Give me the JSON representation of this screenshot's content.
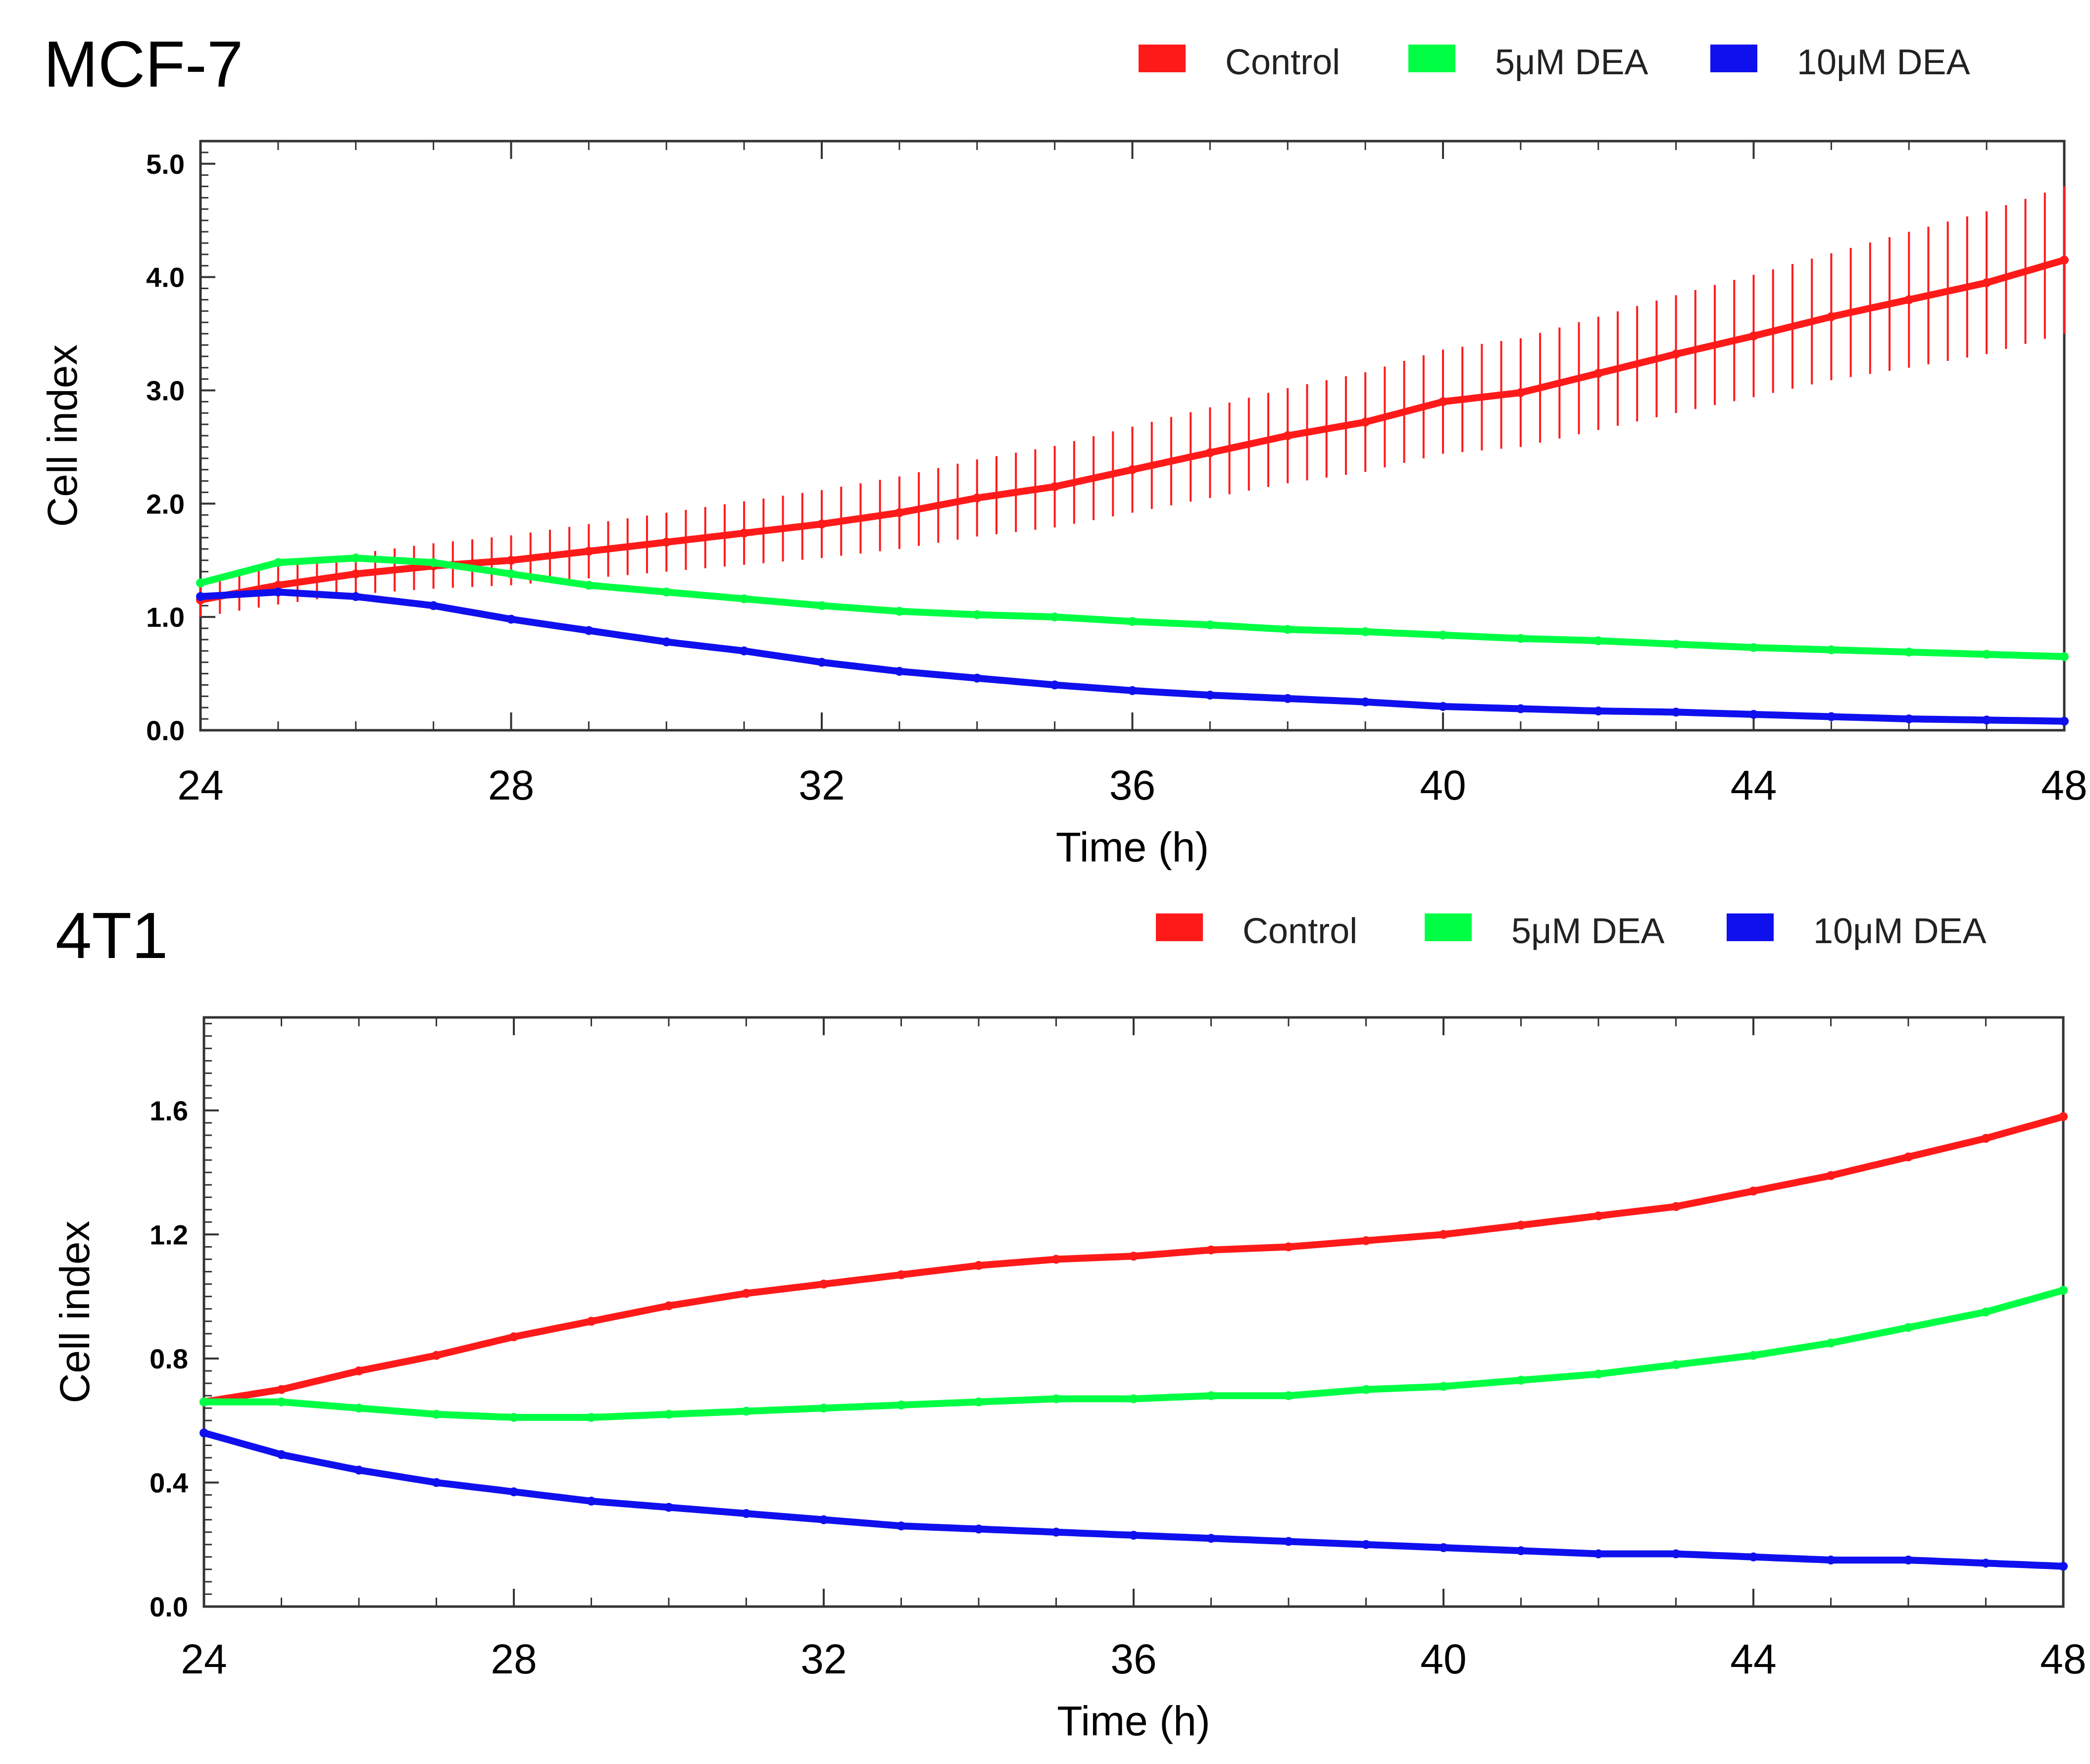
{
  "chart_data": [
    {
      "type": "line",
      "title": "MCF-7",
      "xlabel": "Time (h)",
      "ylabel": "Cell index",
      "xlim": [
        24,
        48
      ],
      "ylim": [
        0,
        5.2
      ],
      "xticks": [
        "24",
        "28",
        "32",
        "36",
        "40",
        "44",
        "48"
      ],
      "yticks": [
        "0.0",
        "1.0",
        "2.0",
        "3.0",
        "4.0",
        "5.0"
      ],
      "legend_position": "top-right",
      "grid": false,
      "x": [
        24,
        25,
        26,
        27,
        28,
        29,
        30,
        31,
        32,
        33,
        34,
        35,
        36,
        37,
        38,
        39,
        40,
        41,
        42,
        43,
        44,
        45,
        46,
        47,
        48
      ],
      "series": [
        {
          "name": "Control",
          "color": "#ff1a1a",
          "values": [
            1.15,
            1.28,
            1.38,
            1.45,
            1.5,
            1.58,
            1.66,
            1.74,
            1.82,
            1.92,
            2.05,
            2.15,
            2.3,
            2.45,
            2.6,
            2.72,
            2.9,
            2.98,
            3.15,
            3.32,
            3.48,
            3.65,
            3.8,
            3.95,
            4.15
          ],
          "errors": [
            0.15,
            0.17,
            0.18,
            0.2,
            0.22,
            0.24,
            0.26,
            0.28,
            0.3,
            0.32,
            0.34,
            0.36,
            0.38,
            0.4,
            0.42,
            0.44,
            0.46,
            0.48,
            0.5,
            0.52,
            0.54,
            0.56,
            0.6,
            0.63,
            0.65
          ]
        },
        {
          "name": "5μM DEA",
          "color": "#00ff44",
          "values": [
            1.3,
            1.48,
            1.52,
            1.48,
            1.38,
            1.28,
            1.22,
            1.16,
            1.1,
            1.05,
            1.02,
            1.0,
            0.96,
            0.93,
            0.89,
            0.87,
            0.84,
            0.81,
            0.79,
            0.76,
            0.73,
            0.71,
            0.69,
            0.67,
            0.65
          ]
        },
        {
          "name": "10μM DEA",
          "color": "#1010ee",
          "values": [
            1.18,
            1.22,
            1.18,
            1.1,
            0.98,
            0.88,
            0.78,
            0.7,
            0.6,
            0.52,
            0.46,
            0.4,
            0.35,
            0.31,
            0.28,
            0.25,
            0.21,
            0.19,
            0.17,
            0.16,
            0.14,
            0.12,
            0.1,
            0.09,
            0.08
          ]
        }
      ]
    },
    {
      "type": "line",
      "title": "4T1",
      "xlabel": "Time (h)",
      "ylabel": "Cell index",
      "xlim": [
        24,
        48
      ],
      "ylim": [
        0,
        1.9
      ],
      "xticks": [
        "24",
        "28",
        "32",
        "36",
        "40",
        "44",
        "48"
      ],
      "yticks": [
        "0.0",
        "0.4",
        "0.8",
        "1.2",
        "1.6"
      ],
      "legend_position": "top-right",
      "grid": false,
      "x": [
        24,
        25,
        26,
        27,
        28,
        29,
        30,
        31,
        32,
        33,
        34,
        35,
        36,
        37,
        38,
        39,
        40,
        41,
        42,
        43,
        44,
        45,
        46,
        47,
        48
      ],
      "series": [
        {
          "name": "Control",
          "color": "#ff1a1a",
          "values": [
            0.66,
            0.7,
            0.76,
            0.81,
            0.87,
            0.92,
            0.97,
            1.01,
            1.04,
            1.07,
            1.1,
            1.12,
            1.13,
            1.15,
            1.16,
            1.18,
            1.2,
            1.23,
            1.26,
            1.29,
            1.34,
            1.39,
            1.45,
            1.51,
            1.58
          ]
        },
        {
          "name": "5μM DEA",
          "color": "#00ff44",
          "values": [
            0.66,
            0.66,
            0.64,
            0.62,
            0.61,
            0.61,
            0.62,
            0.63,
            0.64,
            0.65,
            0.66,
            0.67,
            0.67,
            0.68,
            0.68,
            0.7,
            0.71,
            0.73,
            0.75,
            0.78,
            0.81,
            0.85,
            0.9,
            0.95,
            1.02
          ]
        },
        {
          "name": "10μM DEA",
          "color": "#1010ee",
          "values": [
            0.56,
            0.49,
            0.44,
            0.4,
            0.37,
            0.34,
            0.32,
            0.3,
            0.28,
            0.26,
            0.25,
            0.24,
            0.23,
            0.22,
            0.21,
            0.2,
            0.19,
            0.18,
            0.17,
            0.17,
            0.16,
            0.15,
            0.15,
            0.14,
            0.13
          ]
        }
      ]
    }
  ]
}
